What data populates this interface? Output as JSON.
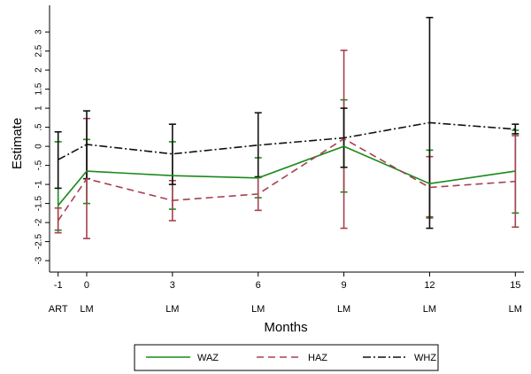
{
  "chart_data": {
    "type": "line",
    "xlabel": "Months",
    "ylabel": "Estimate",
    "x": [
      -1,
      0,
      3,
      6,
      9,
      12,
      15
    ],
    "x_ticks": [
      {
        "value": -1,
        "label": "-1",
        "sublabel": "ART"
      },
      {
        "value": 0,
        "label": "0",
        "sublabel": "LM"
      },
      {
        "value": 3,
        "label": "3",
        "sublabel": "LM"
      },
      {
        "value": 6,
        "label": "6",
        "sublabel": "LM"
      },
      {
        "value": 9,
        "label": "9",
        "sublabel": "LM"
      },
      {
        "value": 12,
        "label": "12",
        "sublabel": "LM"
      },
      {
        "value": 15,
        "label": "15",
        "sublabel": "LM"
      }
    ],
    "xlim": [
      -1.3,
      15.3
    ],
    "ylim": [
      -3.3,
      3.7
    ],
    "y_ticks": [
      {
        "value": -3,
        "label": "-3"
      },
      {
        "value": -2.5,
        "label": "-2.5"
      },
      {
        "value": -2,
        "label": "-2"
      },
      {
        "value": -1.5,
        "label": "-1.5"
      },
      {
        "value": -1,
        "label": "-1"
      },
      {
        "value": -0.5,
        "label": "-.5"
      },
      {
        "value": 0,
        "label": "0"
      },
      {
        "value": 0.5,
        "label": ".5"
      },
      {
        "value": 1,
        "label": "1"
      },
      {
        "value": 1.5,
        "label": "1.5"
      },
      {
        "value": 2,
        "label": "2"
      },
      {
        "value": 2.5,
        "label": "2.5"
      },
      {
        "value": 3,
        "label": "3"
      }
    ],
    "grid": false,
    "legend_position": "bottom",
    "series": [
      {
        "name": "WAZ",
        "color": "#1a8a1a",
        "dash": "solid",
        "values": [
          -1.55,
          -0.65,
          -0.77,
          -0.83,
          0.0,
          -0.98,
          -0.65
        ],
        "ci_low": [
          -2.2,
          -1.5,
          -1.65,
          -1.35,
          -1.2,
          -1.85,
          -1.75
        ],
        "ci_high": [
          0.12,
          0.18,
          0.12,
          -0.3,
          1.22,
          -0.1,
          0.42
        ]
      },
      {
        "name": "HAZ",
        "color": "#a84050",
        "dash": "dashed",
        "values": [
          -1.95,
          -0.85,
          -1.42,
          -1.25,
          0.2,
          -1.08,
          -0.92
        ],
        "ci_low": [
          -2.27,
          -2.42,
          -1.95,
          -1.68,
          -2.15,
          -1.88,
          -2.12
        ],
        "ci_high": [
          -1.62,
          0.73,
          -0.9,
          -0.82,
          2.52,
          -0.27,
          0.28
        ]
      },
      {
        "name": "WHZ",
        "color": "#111111",
        "dash": "dashdot",
        "values": [
          -0.35,
          0.05,
          -0.2,
          0.03,
          0.22,
          0.62,
          0.45
        ],
        "ci_low": [
          -1.1,
          -0.85,
          -1.0,
          -0.8,
          -0.55,
          -2.15,
          0.33
        ],
        "ci_high": [
          0.38,
          0.93,
          0.58,
          0.88,
          1.0,
          3.38,
          0.58
        ]
      }
    ]
  }
}
